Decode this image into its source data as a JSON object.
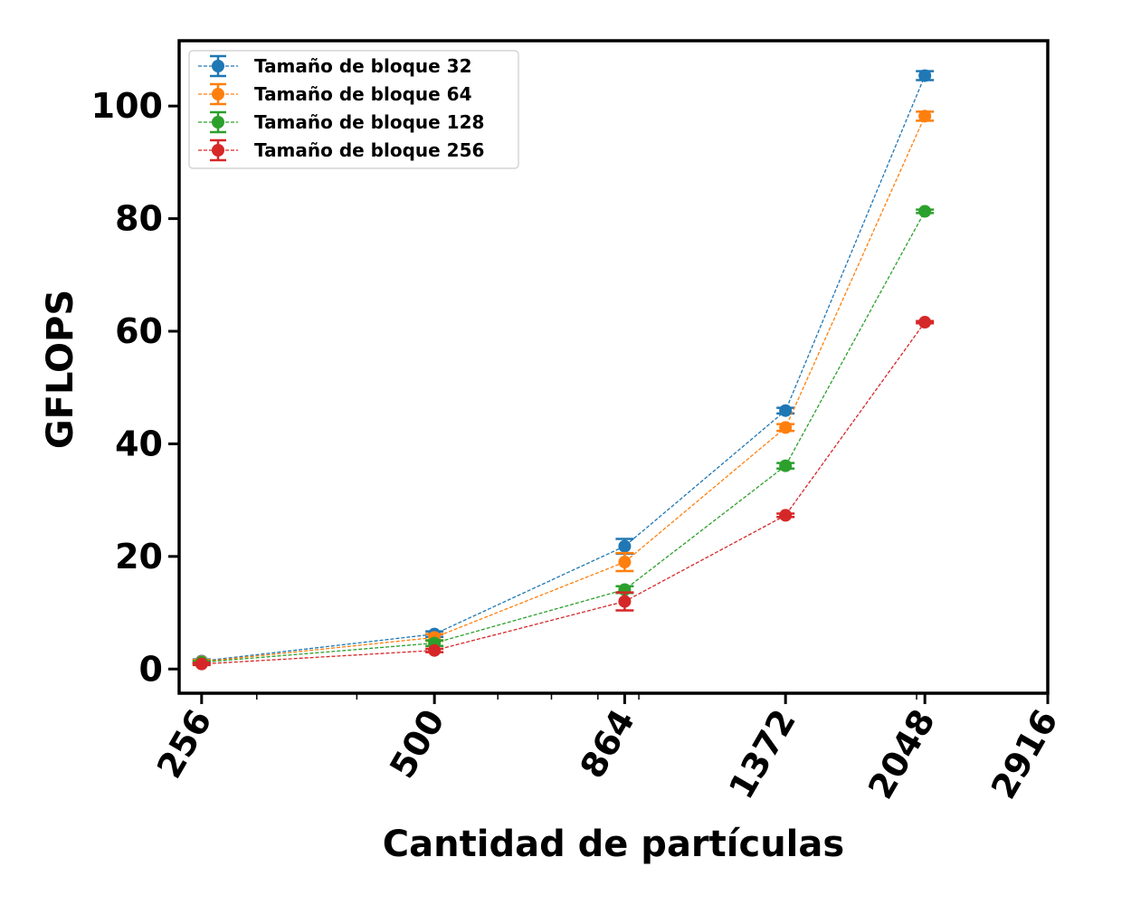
{
  "chart_data": {
    "type": "line",
    "title": "",
    "xlabel": "Cantidad de partículas",
    "ylabel": "GFLOPS",
    "x_scale": "log",
    "x_ticks": [
      256,
      500,
      864,
      1372,
      2048,
      2916
    ],
    "x_tick_labels": [
      "256",
      "500",
      "864",
      "1372",
      "2048",
      "2916"
    ],
    "xlim": [
      240,
      2916
    ],
    "y_ticks": [
      0,
      20,
      40,
      60,
      80,
      100
    ],
    "y_tick_labels": [
      "0",
      "20",
      "40",
      "60",
      "80",
      "100"
    ],
    "ylim": [
      -4.3,
      111.6
    ],
    "grid": false,
    "legend_position": "top-left",
    "marker": "circle",
    "line_style": "dashed",
    "x": [
      256,
      500,
      864,
      1372,
      2048
    ],
    "series": [
      {
        "name": "Tamaño de bloque 32",
        "color": "#1f77b4",
        "values": [
          1.4,
          6.2,
          21.8,
          45.9,
          105.4
        ],
        "errors": [
          0.3,
          0.5,
          1.3,
          0.5,
          0.8
        ]
      },
      {
        "name": "Tamaño de bloque 64",
        "color": "#ff7f0e",
        "values": [
          1.3,
          5.6,
          19.0,
          42.9,
          98.2
        ],
        "errors": [
          0.3,
          0.6,
          1.6,
          0.6,
          0.8
        ]
      },
      {
        "name": "Tamaño de bloque 128",
        "color": "#2ca02c",
        "values": [
          1.2,
          4.6,
          14.1,
          36.1,
          81.3
        ],
        "errors": [
          0.2,
          0.5,
          0.6,
          0.5,
          0.3
        ]
      },
      {
        "name": "Tamaño de bloque 256",
        "color": "#d62728",
        "values": [
          0.9,
          3.3,
          12.0,
          27.3,
          61.6
        ],
        "errors": [
          0.2,
          0.3,
          1.6,
          0.3,
          0.2
        ]
      }
    ]
  }
}
